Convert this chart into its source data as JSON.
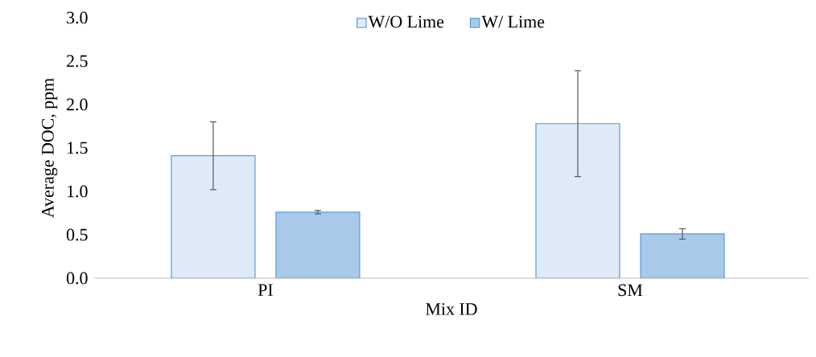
{
  "chart_data": {
    "type": "bar",
    "xlabel": "Mix ID",
    "ylabel": "Average DOC, ppm",
    "categories": [
      "PI",
      "SM"
    ],
    "series": [
      {
        "name": "W/O Lime",
        "color": "#deebf7",
        "values": [
          1.41,
          1.78
        ],
        "errors": [
          0.39,
          0.61
        ]
      },
      {
        "name": "W/ Lime",
        "color": "#a9c9ea",
        "values": [
          0.76,
          0.51
        ],
        "errors": [
          0.02,
          0.06
        ]
      }
    ],
    "ylim": [
      0,
      3
    ],
    "yticks": [
      {
        "value": 0,
        "label": "0.0"
      },
      {
        "value": 0.5,
        "label": "0.5"
      },
      {
        "value": 1,
        "label": "1.0"
      },
      {
        "value": 1.5,
        "label": "1.5"
      },
      {
        "value": 2,
        "label": "2.0"
      },
      {
        "value": 2.5,
        "label": "2.5"
      },
      {
        "value": 3,
        "label": "3.0"
      }
    ],
    "legend": "top",
    "grid": false
  }
}
